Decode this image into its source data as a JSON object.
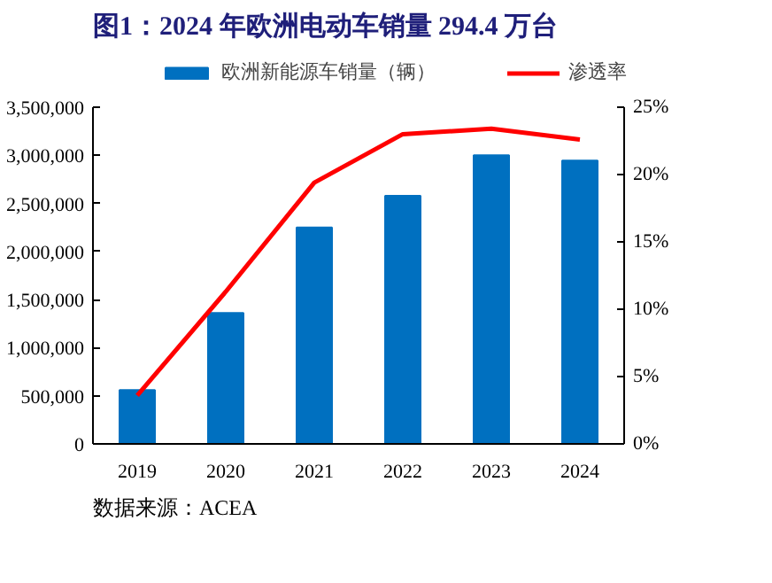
{
  "chart_data": {
    "type": "bar",
    "title": "图1：2024 年欧洲电动车销量 294.4 万台",
    "categories": [
      "2019",
      "2020",
      "2021",
      "2022",
      "2023",
      "2024"
    ],
    "series": [
      {
        "name": "欧洲新能源车销量（辆）",
        "color": "#0070c0",
        "values": [
          560000,
          1360000,
          2250000,
          2580000,
          3000000,
          2944000
        ]
      },
      {
        "name": "渗透率",
        "color": "#ff0000",
        "type": "line",
        "axis": "y2",
        "values": [
          3.6,
          11.3,
          19.4,
          23.0,
          23.4,
          22.6
        ]
      }
    ],
    "ylim": [
      0,
      3500000
    ],
    "yticks": [
      {
        "value": 0,
        "label": "0"
      },
      {
        "value": 500000,
        "label": "500,000"
      },
      {
        "value": 1000000,
        "label": "1,000,000"
      },
      {
        "value": 1500000,
        "label": "1,500,000"
      },
      {
        "value": 2000000,
        "label": "2,000,000"
      },
      {
        "value": 2500000,
        "label": "2,500,000"
      },
      {
        "value": 3000000,
        "label": "3,000,000"
      },
      {
        "value": 3500000,
        "label": "3,500,000"
      }
    ],
    "y2lim": [
      0,
      25
    ],
    "y2ticks": [
      {
        "value": 0,
        "label": "0%"
      },
      {
        "value": 5,
        "label": "5%"
      },
      {
        "value": 10,
        "label": "10%"
      },
      {
        "value": 15,
        "label": "15%"
      },
      {
        "value": 20,
        "label": "20%"
      },
      {
        "value": 25,
        "label": "25%"
      }
    ],
    "legend": "top",
    "grid": false,
    "marker": "none",
    "line_style": "solid",
    "annotations": [
      "数据来源：ACEA"
    ]
  }
}
